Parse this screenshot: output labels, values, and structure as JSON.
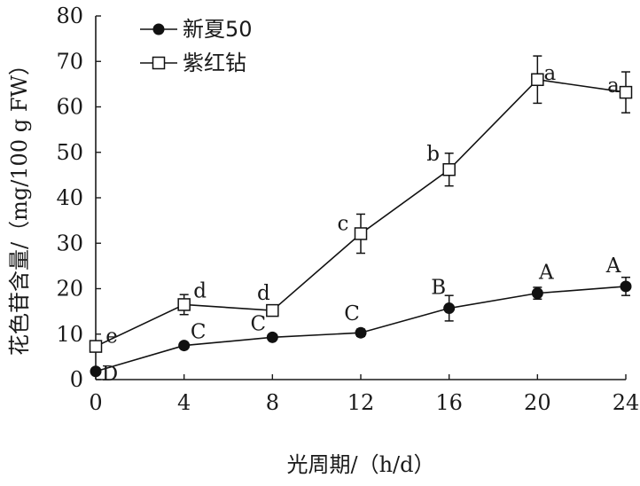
{
  "chart_data": {
    "type": "line",
    "xlabel": "光周期/（h/d）",
    "ylabel": "花色苷含量/（mg/100 g FW）",
    "xlim": [
      0,
      24
    ],
    "ylim": [
      0,
      80
    ],
    "x_ticks": [
      0,
      4,
      8,
      12,
      16,
      20,
      24
    ],
    "y_ticks": [
      0,
      10,
      20,
      30,
      40,
      50,
      60,
      70,
      80
    ],
    "grid": false,
    "legend_position": "top-left",
    "series": [
      {
        "name": "新夏50",
        "marker": "filled-circle",
        "color": "#111111",
        "x": [
          0,
          4,
          8,
          12,
          16,
          20,
          24
        ],
        "values": [
          1.8,
          7.5,
          9.3,
          10.3,
          15.7,
          19.0,
          20.5
        ],
        "errors": [
          0.5,
          0.6,
          0.6,
          0.8,
          2.8,
          1.3,
          2.0
        ],
        "labels": [
          "D",
          "C",
          "C",
          "C",
          "B",
          "A",
          "A"
        ]
      },
      {
        "name": "紫红钻",
        "marker": "open-square",
        "color": "#111111",
        "x": [
          0,
          4,
          8,
          12,
          16,
          20,
          24
        ],
        "values": [
          7.3,
          16.5,
          15.2,
          32.1,
          46.2,
          66.0,
          63.2
        ],
        "errors": [
          0.8,
          2.2,
          0.8,
          4.3,
          3.6,
          5.2,
          4.5
        ],
        "labels": [
          "e",
          "d",
          "d",
          "c",
          "b",
          "a",
          "a"
        ]
      }
    ]
  }
}
